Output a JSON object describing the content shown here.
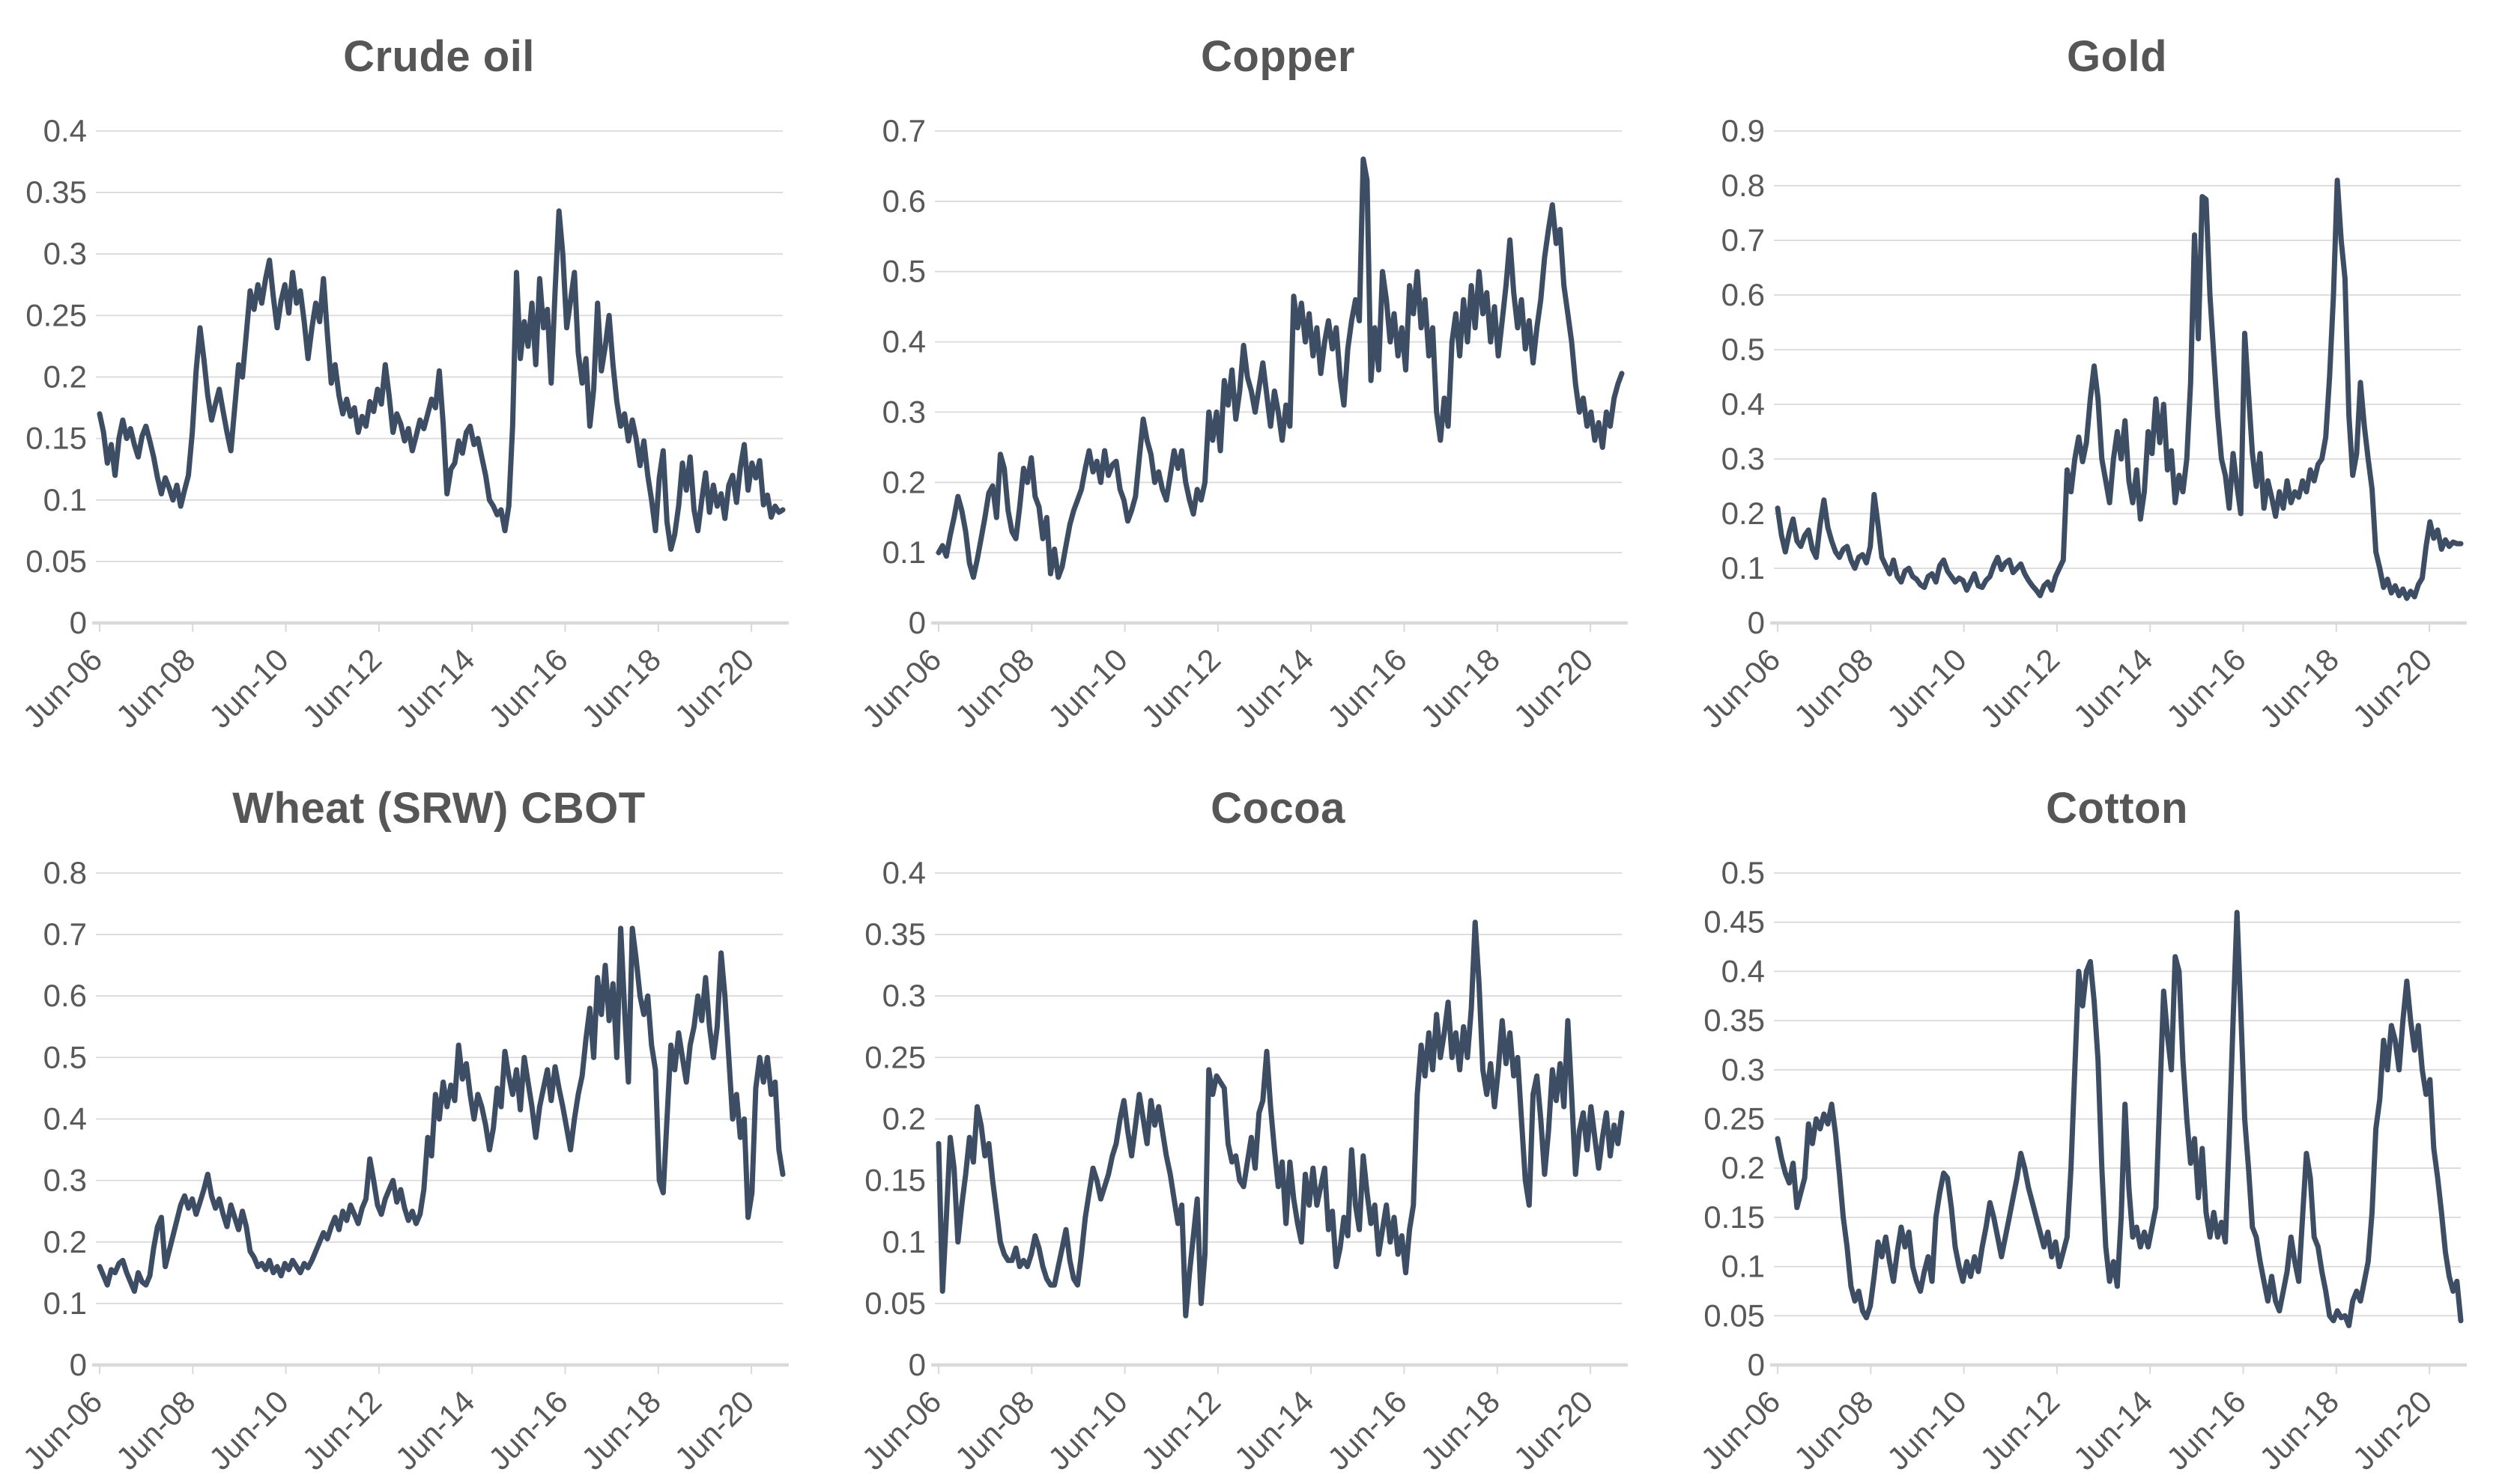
{
  "page": {
    "background": "#ffffff"
  },
  "styles": {
    "series_color": "#3d4d63",
    "grid_color": "#d9d9d9",
    "axis_color": "#d9d9d9",
    "label_color": "#595959",
    "title_color": "#565656"
  },
  "x_axis": {
    "tick_labels": [
      "Jun-06",
      "Jun-08",
      "Jun-10",
      "Jun-12",
      "Jun-14",
      "Jun-16",
      "Jun-18",
      "Jun-20"
    ],
    "first_point": "Jun-06",
    "points_per_month": 1
  },
  "chart_data": [
    {
      "type": "line",
      "title": "Crude oil",
      "ylim": [
        0,
        0.4
      ],
      "ytick_step": 0.05,
      "ytick_labels": [
        "0",
        "0.05",
        "0.1",
        "0.15",
        "0.2",
        "0.25",
        "0.3",
        "0.35",
        "0.4"
      ],
      "grid": true,
      "legend": "none",
      "values": [
        0.17,
        0.155,
        0.13,
        0.145,
        0.12,
        0.15,
        0.165,
        0.15,
        0.158,
        0.145,
        0.135,
        0.152,
        0.16,
        0.148,
        0.135,
        0.118,
        0.105,
        0.118,
        0.11,
        0.1,
        0.112,
        0.095,
        0.108,
        0.12,
        0.155,
        0.205,
        0.24,
        0.215,
        0.185,
        0.165,
        0.178,
        0.19,
        0.172,
        0.155,
        0.14,
        0.175,
        0.21,
        0.2,
        0.235,
        0.27,
        0.255,
        0.275,
        0.26,
        0.28,
        0.295,
        0.265,
        0.24,
        0.262,
        0.275,
        0.252,
        0.285,
        0.26,
        0.27,
        0.245,
        0.215,
        0.24,
        0.26,
        0.245,
        0.28,
        0.235,
        0.195,
        0.21,
        0.185,
        0.17,
        0.182,
        0.168,
        0.175,
        0.155,
        0.168,
        0.16,
        0.18,
        0.172,
        0.19,
        0.178,
        0.21,
        0.185,
        0.155,
        0.17,
        0.162,
        0.148,
        0.158,
        0.14,
        0.152,
        0.165,
        0.158,
        0.17,
        0.182,
        0.175,
        0.205,
        0.162,
        0.105,
        0.125,
        0.13,
        0.148,
        0.138,
        0.155,
        0.16,
        0.145,
        0.15,
        0.135,
        0.12,
        0.1,
        0.095,
        0.088,
        0.092,
        0.075,
        0.095,
        0.16,
        0.285,
        0.215,
        0.245,
        0.225,
        0.26,
        0.21,
        0.28,
        0.24,
        0.255,
        0.195,
        0.27,
        0.335,
        0.3,
        0.24,
        0.262,
        0.285,
        0.22,
        0.195,
        0.215,
        0.16,
        0.19,
        0.26,
        0.205,
        0.225,
        0.25,
        0.21,
        0.18,
        0.16,
        0.17,
        0.148,
        0.165,
        0.15,
        0.128,
        0.148,
        0.12,
        0.1,
        0.075,
        0.118,
        0.14,
        0.082,
        0.06,
        0.072,
        0.095,
        0.13,
        0.108,
        0.135,
        0.092,
        0.075,
        0.1,
        0.122,
        0.09,
        0.112,
        0.095,
        0.105,
        0.085,
        0.112,
        0.12,
        0.098,
        0.126,
        0.145,
        0.108,
        0.13,
        0.118,
        0.132,
        0.096,
        0.104,
        0.086,
        0.095,
        0.09,
        0.092
      ]
    },
    {
      "type": "line",
      "title": "Copper",
      "ylim": [
        0,
        0.7
      ],
      "ytick_step": 0.1,
      "ytick_labels": [
        "0",
        "0.1",
        "0.2",
        "0.3",
        "0.4",
        "0.5",
        "0.6",
        "0.7"
      ],
      "grid": true,
      "legend": "none",
      "values": [
        0.1,
        0.11,
        0.095,
        0.125,
        0.15,
        0.18,
        0.16,
        0.13,
        0.085,
        0.065,
        0.09,
        0.12,
        0.15,
        0.185,
        0.195,
        0.15,
        0.24,
        0.22,
        0.16,
        0.13,
        0.12,
        0.165,
        0.22,
        0.2,
        0.235,
        0.18,
        0.165,
        0.12,
        0.15,
        0.07,
        0.105,
        0.065,
        0.08,
        0.11,
        0.14,
        0.16,
        0.175,
        0.19,
        0.22,
        0.245,
        0.215,
        0.23,
        0.2,
        0.245,
        0.21,
        0.225,
        0.23,
        0.19,
        0.175,
        0.145,
        0.16,
        0.18,
        0.235,
        0.29,
        0.26,
        0.24,
        0.2,
        0.215,
        0.19,
        0.175,
        0.21,
        0.245,
        0.22,
        0.245,
        0.2,
        0.175,
        0.155,
        0.19,
        0.175,
        0.2,
        0.3,
        0.26,
        0.3,
        0.245,
        0.345,
        0.31,
        0.36,
        0.29,
        0.33,
        0.395,
        0.35,
        0.33,
        0.3,
        0.335,
        0.37,
        0.325,
        0.28,
        0.33,
        0.3,
        0.26,
        0.31,
        0.28,
        0.465,
        0.42,
        0.455,
        0.4,
        0.44,
        0.38,
        0.42,
        0.355,
        0.4,
        0.43,
        0.39,
        0.42,
        0.35,
        0.31,
        0.39,
        0.43,
        0.46,
        0.43,
        0.66,
        0.63,
        0.345,
        0.42,
        0.36,
        0.5,
        0.46,
        0.4,
        0.44,
        0.38,
        0.42,
        0.36,
        0.48,
        0.44,
        0.5,
        0.42,
        0.46,
        0.38,
        0.42,
        0.3,
        0.26,
        0.32,
        0.28,
        0.4,
        0.44,
        0.38,
        0.46,
        0.4,
        0.48,
        0.42,
        0.5,
        0.44,
        0.47,
        0.4,
        0.45,
        0.38,
        0.43,
        0.48,
        0.545,
        0.47,
        0.42,
        0.46,
        0.39,
        0.43,
        0.37,
        0.42,
        0.46,
        0.52,
        0.56,
        0.595,
        0.54,
        0.56,
        0.48,
        0.44,
        0.4,
        0.34,
        0.3,
        0.32,
        0.28,
        0.3,
        0.26,
        0.285,
        0.25,
        0.3,
        0.28,
        0.32,
        0.34,
        0.355
      ]
    },
    {
      "type": "line",
      "title": "Gold",
      "ylim": [
        0,
        0.9
      ],
      "ytick_step": 0.1,
      "ytick_labels": [
        "0",
        "0.1",
        "0.2",
        "0.3",
        "0.4",
        "0.5",
        "0.6",
        "0.7",
        "0.8",
        "0.9"
      ],
      "grid": true,
      "legend": "none",
      "values": [
        0.21,
        0.16,
        0.13,
        0.165,
        0.19,
        0.15,
        0.14,
        0.16,
        0.17,
        0.135,
        0.12,
        0.18,
        0.225,
        0.175,
        0.15,
        0.13,
        0.12,
        0.135,
        0.14,
        0.115,
        0.1,
        0.12,
        0.125,
        0.11,
        0.14,
        0.235,
        0.18,
        0.12,
        0.105,
        0.09,
        0.115,
        0.085,
        0.075,
        0.095,
        0.1,
        0.085,
        0.08,
        0.07,
        0.065,
        0.085,
        0.09,
        0.075,
        0.105,
        0.115,
        0.095,
        0.085,
        0.075,
        0.082,
        0.078,
        0.06,
        0.075,
        0.09,
        0.068,
        0.065,
        0.078,
        0.085,
        0.105,
        0.12,
        0.098,
        0.11,
        0.115,
        0.092,
        0.1,
        0.108,
        0.09,
        0.078,
        0.068,
        0.06,
        0.05,
        0.068,
        0.075,
        0.06,
        0.085,
        0.1,
        0.115,
        0.28,
        0.24,
        0.3,
        0.34,
        0.295,
        0.33,
        0.41,
        0.47,
        0.41,
        0.3,
        0.26,
        0.22,
        0.3,
        0.35,
        0.3,
        0.37,
        0.26,
        0.22,
        0.28,
        0.19,
        0.24,
        0.35,
        0.31,
        0.41,
        0.33,
        0.4,
        0.28,
        0.315,
        0.22,
        0.27,
        0.24,
        0.3,
        0.44,
        0.71,
        0.52,
        0.78,
        0.775,
        0.6,
        0.49,
        0.38,
        0.3,
        0.27,
        0.21,
        0.31,
        0.25,
        0.2,
        0.53,
        0.42,
        0.31,
        0.25,
        0.31,
        0.21,
        0.26,
        0.23,
        0.195,
        0.24,
        0.21,
        0.26,
        0.22,
        0.24,
        0.23,
        0.26,
        0.24,
        0.28,
        0.26,
        0.29,
        0.3,
        0.34,
        0.45,
        0.6,
        0.81,
        0.7,
        0.63,
        0.38,
        0.27,
        0.31,
        0.44,
        0.36,
        0.3,
        0.245,
        0.13,
        0.1,
        0.065,
        0.08,
        0.055,
        0.068,
        0.05,
        0.062,
        0.045,
        0.058,
        0.048,
        0.07,
        0.082,
        0.14,
        0.185,
        0.155,
        0.17,
        0.135,
        0.152,
        0.14,
        0.148,
        0.145,
        0.145
      ]
    },
    {
      "type": "line",
      "title": "Wheat (SRW) CBOT",
      "ylim": [
        0,
        0.8
      ],
      "ytick_step": 0.1,
      "ytick_labels": [
        "0",
        "0.1",
        "0.2",
        "0.3",
        "0.4",
        "0.5",
        "0.6",
        "0.7",
        "0.8"
      ],
      "grid": true,
      "legend": "none",
      "values": [
        0.16,
        0.145,
        0.13,
        0.155,
        0.15,
        0.165,
        0.17,
        0.15,
        0.135,
        0.12,
        0.15,
        0.135,
        0.13,
        0.145,
        0.19,
        0.225,
        0.24,
        0.16,
        0.185,
        0.21,
        0.235,
        0.26,
        0.275,
        0.255,
        0.27,
        0.245,
        0.265,
        0.285,
        0.31,
        0.275,
        0.255,
        0.27,
        0.245,
        0.225,
        0.26,
        0.24,
        0.22,
        0.25,
        0.225,
        0.185,
        0.175,
        0.16,
        0.165,
        0.155,
        0.17,
        0.15,
        0.16,
        0.145,
        0.165,
        0.155,
        0.17,
        0.16,
        0.15,
        0.165,
        0.158,
        0.17,
        0.185,
        0.2,
        0.215,
        0.205,
        0.225,
        0.24,
        0.22,
        0.25,
        0.235,
        0.26,
        0.245,
        0.23,
        0.255,
        0.27,
        0.335,
        0.3,
        0.26,
        0.245,
        0.27,
        0.285,
        0.3,
        0.265,
        0.285,
        0.255,
        0.235,
        0.25,
        0.23,
        0.245,
        0.285,
        0.37,
        0.34,
        0.44,
        0.4,
        0.46,
        0.42,
        0.455,
        0.43,
        0.52,
        0.465,
        0.49,
        0.44,
        0.4,
        0.44,
        0.42,
        0.39,
        0.35,
        0.385,
        0.45,
        0.42,
        0.51,
        0.47,
        0.44,
        0.48,
        0.415,
        0.5,
        0.46,
        0.42,
        0.37,
        0.42,
        0.45,
        0.48,
        0.43,
        0.485,
        0.45,
        0.42,
        0.385,
        0.35,
        0.4,
        0.44,
        0.47,
        0.53,
        0.58,
        0.5,
        0.63,
        0.57,
        0.65,
        0.56,
        0.62,
        0.5,
        0.71,
        0.58,
        0.46,
        0.71,
        0.66,
        0.6,
        0.57,
        0.6,
        0.52,
        0.48,
        0.3,
        0.28,
        0.4,
        0.52,
        0.48,
        0.54,
        0.5,
        0.46,
        0.52,
        0.55,
        0.6,
        0.56,
        0.63,
        0.55,
        0.5,
        0.55,
        0.67,
        0.6,
        0.5,
        0.4,
        0.44,
        0.37,
        0.4,
        0.24,
        0.28,
        0.45,
        0.5,
        0.46,
        0.5,
        0.44,
        0.46,
        0.35,
        0.31
      ]
    },
    {
      "type": "line",
      "title": "Cocoa",
      "ylim": [
        0,
        0.4
      ],
      "ytick_step": 0.05,
      "ytick_labels": [
        "0",
        "0.05",
        "0.1",
        "0.15",
        "0.2",
        "0.25",
        "0.3",
        "0.35",
        "0.4"
      ],
      "grid": true,
      "legend": "none",
      "values": [
        0.18,
        0.06,
        0.12,
        0.185,
        0.16,
        0.1,
        0.13,
        0.155,
        0.185,
        0.165,
        0.21,
        0.195,
        0.17,
        0.18,
        0.15,
        0.125,
        0.1,
        0.09,
        0.085,
        0.085,
        0.095,
        0.08,
        0.085,
        0.08,
        0.09,
        0.105,
        0.095,
        0.08,
        0.07,
        0.065,
        0.065,
        0.08,
        0.095,
        0.11,
        0.085,
        0.07,
        0.065,
        0.09,
        0.12,
        0.14,
        0.16,
        0.15,
        0.135,
        0.145,
        0.155,
        0.17,
        0.18,
        0.2,
        0.215,
        0.19,
        0.17,
        0.195,
        0.22,
        0.2,
        0.18,
        0.215,
        0.195,
        0.21,
        0.19,
        0.17,
        0.155,
        0.135,
        0.115,
        0.13,
        0.04,
        0.075,
        0.105,
        0.135,
        0.05,
        0.09,
        0.24,
        0.22,
        0.235,
        0.23,
        0.225,
        0.18,
        0.165,
        0.17,
        0.15,
        0.145,
        0.165,
        0.185,
        0.16,
        0.205,
        0.215,
        0.255,
        0.21,
        0.175,
        0.145,
        0.165,
        0.115,
        0.165,
        0.135,
        0.115,
        0.1,
        0.155,
        0.13,
        0.16,
        0.13,
        0.145,
        0.16,
        0.11,
        0.125,
        0.08,
        0.095,
        0.12,
        0.105,
        0.175,
        0.13,
        0.11,
        0.17,
        0.14,
        0.115,
        0.13,
        0.09,
        0.11,
        0.13,
        0.1,
        0.12,
        0.09,
        0.105,
        0.075,
        0.11,
        0.13,
        0.22,
        0.26,
        0.235,
        0.27,
        0.24,
        0.285,
        0.25,
        0.27,
        0.295,
        0.25,
        0.27,
        0.24,
        0.275,
        0.25,
        0.29,
        0.36,
        0.31,
        0.24,
        0.22,
        0.245,
        0.21,
        0.24,
        0.28,
        0.245,
        0.27,
        0.235,
        0.25,
        0.2,
        0.15,
        0.13,
        0.22,
        0.235,
        0.2,
        0.155,
        0.19,
        0.24,
        0.215,
        0.245,
        0.21,
        0.28,
        0.22,
        0.155,
        0.19,
        0.205,
        0.175,
        0.21,
        0.185,
        0.16,
        0.185,
        0.205,
        0.17,
        0.195,
        0.18,
        0.205
      ]
    },
    {
      "type": "line",
      "title": "Cotton",
      "ylim": [
        0,
        0.5
      ],
      "ytick_step": 0.05,
      "ytick_labels": [
        "0",
        "0.05",
        "0.1",
        "0.15",
        "0.2",
        "0.25",
        "0.3",
        "0.35",
        "0.4",
        "0.45",
        "0.5"
      ],
      "grid": true,
      "legend": "none",
      "values": [
        0.23,
        0.21,
        0.195,
        0.185,
        0.205,
        0.16,
        0.175,
        0.19,
        0.245,
        0.225,
        0.25,
        0.24,
        0.255,
        0.245,
        0.265,
        0.235,
        0.195,
        0.15,
        0.12,
        0.08,
        0.065,
        0.075,
        0.055,
        0.048,
        0.06,
        0.09,
        0.125,
        0.11,
        0.13,
        0.105,
        0.085,
        0.115,
        0.14,
        0.12,
        0.135,
        0.1,
        0.085,
        0.075,
        0.095,
        0.11,
        0.085,
        0.15,
        0.175,
        0.195,
        0.19,
        0.16,
        0.12,
        0.1,
        0.085,
        0.105,
        0.09,
        0.11,
        0.095,
        0.12,
        0.14,
        0.165,
        0.15,
        0.13,
        0.11,
        0.13,
        0.15,
        0.17,
        0.19,
        0.215,
        0.2,
        0.18,
        0.165,
        0.15,
        0.135,
        0.12,
        0.135,
        0.11,
        0.125,
        0.1,
        0.115,
        0.13,
        0.2,
        0.3,
        0.4,
        0.365,
        0.4,
        0.41,
        0.37,
        0.31,
        0.2,
        0.12,
        0.085,
        0.105,
        0.08,
        0.15,
        0.265,
        0.18,
        0.13,
        0.14,
        0.12,
        0.135,
        0.12,
        0.14,
        0.16,
        0.27,
        0.38,
        0.335,
        0.3,
        0.415,
        0.4,
        0.31,
        0.25,
        0.205,
        0.23,
        0.17,
        0.22,
        0.155,
        0.13,
        0.155,
        0.13,
        0.145,
        0.125,
        0.23,
        0.35,
        0.46,
        0.36,
        0.25,
        0.2,
        0.14,
        0.13,
        0.105,
        0.085,
        0.065,
        0.09,
        0.065,
        0.055,
        0.075,
        0.095,
        0.13,
        0.105,
        0.085,
        0.15,
        0.215,
        0.19,
        0.13,
        0.12,
        0.095,
        0.075,
        0.05,
        0.045,
        0.055,
        0.048,
        0.05,
        0.04,
        0.065,
        0.075,
        0.065,
        0.085,
        0.105,
        0.155,
        0.24,
        0.27,
        0.33,
        0.3,
        0.345,
        0.33,
        0.3,
        0.35,
        0.39,
        0.35,
        0.32,
        0.345,
        0.3,
        0.275,
        0.29,
        0.22,
        0.19,
        0.155,
        0.115,
        0.09,
        0.075,
        0.085,
        0.045
      ]
    }
  ]
}
